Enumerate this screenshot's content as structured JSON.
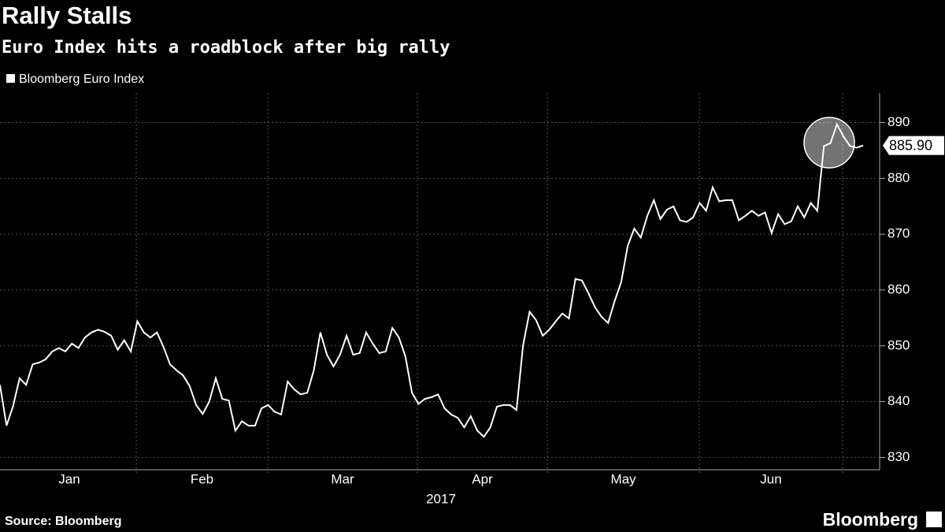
{
  "chart_data": {
    "type": "line",
    "title": "Rally Stalls",
    "subtitle": "Euro Index hits a roadblock after big rally",
    "x_labels": [
      "Jan",
      "Feb",
      "Mar",
      "Apr",
      "May",
      "Jun"
    ],
    "x_year": "2017",
    "series": [
      {
        "name": "Bloomberg Euro Index",
        "color": "#ffffff",
        "values": [
          843.0,
          835.7,
          839.2,
          844.2,
          843.0,
          846.7,
          847.0,
          847.6,
          849.0,
          849.6,
          849.0,
          850.4,
          849.6,
          851.5,
          852.4,
          852.9,
          852.5,
          851.8,
          849.3,
          851.0,
          849.0,
          854.4,
          852.4,
          851.5,
          852.4,
          849.8,
          846.7,
          845.6,
          844.7,
          842.8,
          839.4,
          837.8,
          840.0,
          844.2,
          840.5,
          840.2,
          834.8,
          836.5,
          835.7,
          835.7,
          838.8,
          839.4,
          838.2,
          837.7,
          843.6,
          842.2,
          841.3,
          841.6,
          845.6,
          852.4,
          848.4,
          846.3,
          848.4,
          851.8,
          848.4,
          848.7,
          852.4,
          850.4,
          848.7,
          849.0,
          853.2,
          851.5,
          848.1,
          841.6,
          839.6,
          840.5,
          840.8,
          841.3,
          838.8,
          837.7,
          837.1,
          835.4,
          837.4,
          834.8,
          833.7,
          835.4,
          839.1,
          839.4,
          839.4,
          838.5,
          850.1,
          856.1,
          854.6,
          851.8,
          852.9,
          854.4,
          855.8,
          854.9,
          862.0,
          861.7,
          859.4,
          856.9,
          855.2,
          854.1,
          858.0,
          861.4,
          867.9,
          871.0,
          869.4,
          873.3,
          876.1,
          872.7,
          874.4,
          875.0,
          872.5,
          872.2,
          873.0,
          875.6,
          874.2,
          878.4,
          875.9,
          876.1,
          876.1,
          872.5,
          873.3,
          874.2,
          873.3,
          873.9,
          870.2,
          873.6,
          871.8,
          872.3,
          875.0,
          873.0,
          875.6,
          874.2,
          885.8,
          886.3,
          889.7,
          887.5,
          885.8,
          885.5,
          885.9
        ]
      }
    ],
    "last_value": {
      "value": 885.9,
      "label": "885.90"
    },
    "ylim": [
      827.8,
      895.3
    ],
    "yticks": [
      830,
      840,
      850,
      860,
      870,
      880,
      890
    ],
    "grid": true,
    "source": "Source: Bloomberg",
    "brand": "Bloomberg"
  }
}
